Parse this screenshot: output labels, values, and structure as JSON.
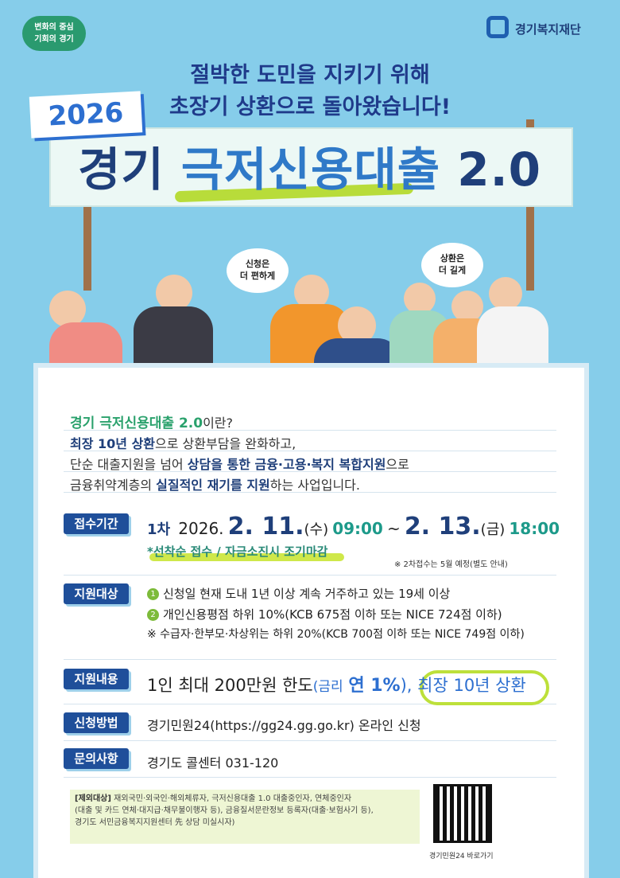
{
  "header": {
    "badge": [
      "변화의 중심",
      "기회의 경기"
    ],
    "org": "경기복지재단"
  },
  "headline": [
    "절박한 도민을 지키기 위해",
    "초장기 상환으로 돌아왔습니다!"
  ],
  "year": "2026",
  "title": {
    "prefix": "경기",
    "main": "극저신용대출",
    "version": "2.0"
  },
  "bubbles": [
    [
      "신청은",
      "더 편하게"
    ],
    [
      "상환은",
      "더 길게"
    ]
  ],
  "intro": [
    [
      "경기 극저신용대출 2.0",
      "이란?"
    ],
    [
      "최장 10년 상환",
      "으로 상환부담을 완화하고,"
    ],
    [
      "단순 대출지원을 넘어 ",
      "상담을 통한 금융·고용·복지 복합지원",
      "으로"
    ],
    [
      "금융취약계층의 ",
      "실질적인 재기를 지원",
      "하는 사업입니다."
    ]
  ],
  "period": {
    "label": "접수기간",
    "round": "1차",
    "year": "2026.",
    "start_date": "2. 11.",
    "start_day": "(수)",
    "start_time": "09:00",
    "sep": "~",
    "end_date": "2. 13.",
    "end_day": "(금)",
    "end_time": "18:00",
    "note": "*선착순 접수 / 자금소진시 조기마감",
    "footnote": "※ 2차접수는 5월 예정(별도 안내)"
  },
  "target": {
    "label": "지원대상",
    "items": [
      {
        "num": "1",
        "text": "신청일 현재 도내 1년 이상 계속 거주하고 있는 19세 이상"
      },
      {
        "num": "2",
        "text": "개인신용평점 하위 10%(KCB 675점 이하 또는 NICE 724점 이하)"
      }
    ],
    "note": "※ 수급자·한부모·차상위는 하위 20%(KCB 700점 이하 또는 NICE 749점 이하)"
  },
  "content": {
    "label": "지원내용",
    "parts": [
      "1인 최대 200만원 한도",
      "(금리",
      "연 1%",
      "),",
      "최장 10년 상환"
    ]
  },
  "method": {
    "label": "신청방법",
    "text": "경기민원24(https://gg24.gg.go.kr) 온라인 신청"
  },
  "contact": {
    "label": "문의사항",
    "text": "경기도 콜센터 031-120"
  },
  "exclusion": {
    "label": "[제외대상]",
    "lines": [
      "재외국민·외국인·해외체류자, 극저신용대출 1.0 대출중인자, 연체중인자",
      "(대출 및 카드 연체·대지급·채무불이행자 등), 금융질서문란정보 등록자(대출·보험사기 등),",
      "경기도 서민금융복지지원센터 先 상담 미실시자)"
    ]
  },
  "qr_caption": "경기민원24 바로가기"
}
